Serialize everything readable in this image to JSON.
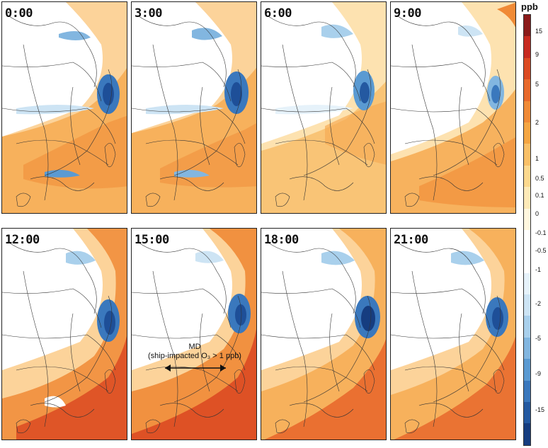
{
  "panels": [
    {
      "label": "0:00"
    },
    {
      "label": "3:00"
    },
    {
      "label": "6:00"
    },
    {
      "label": "9:00"
    },
    {
      "label": "12:00"
    },
    {
      "label": "15:00"
    },
    {
      "label": "18:00"
    },
    {
      "label": "21:00"
    }
  ],
  "annotation": {
    "title": "MD",
    "detail": "(ship-impacted O₃ > 1 ppb)"
  },
  "colorbar": {
    "unit": "ppb",
    "ticks": [
      "15",
      "9",
      "5",
      "2",
      "1",
      "0.5",
      "0.1",
      "0",
      "-0.1",
      "-0.5",
      "-1",
      "-2",
      "-5",
      "-9",
      "-15"
    ],
    "colors": [
      "#8b1a1a",
      "#c72a20",
      "#dc4a22",
      "#e8692c",
      "#f08a36",
      "#f5a642",
      "#f9c067",
      "#fcd98e",
      "#fdeab8",
      "#fff7df",
      "#ffffff",
      "#ffffff",
      "#e6f2fa",
      "#cde4f4",
      "#a9d0ec",
      "#82b6e0",
      "#5a9ad2",
      "#3a78bd",
      "#2459a1",
      "#163d80"
    ]
  }
}
